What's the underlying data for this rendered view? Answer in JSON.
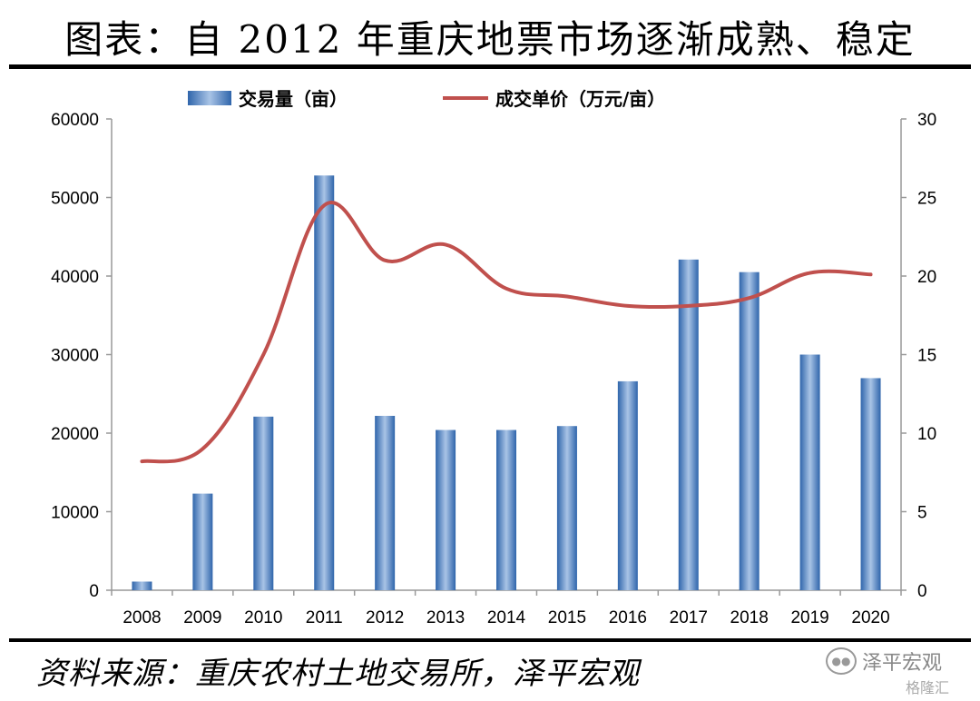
{
  "header": {
    "title": "图表：自 2012 年重庆地票市场逐渐成熟、稳定"
  },
  "footer": {
    "source": "资料来源：重庆农村土地交易所，泽平宏观",
    "watermark_brand": "泽平宏观",
    "watermark_site": "格隆汇"
  },
  "colors": {
    "bar": "#3d74b8",
    "bar_light": "#a9c4e6",
    "line": "#c0504d",
    "axis": "#999999"
  },
  "chart_data": {
    "type": "bar",
    "categories": [
      "2008",
      "2009",
      "2010",
      "2011",
      "2012",
      "2013",
      "2014",
      "2015",
      "2016",
      "2017",
      "2018",
      "2019",
      "2020"
    ],
    "series": [
      {
        "name": "交易量（亩）",
        "type": "bar",
        "axis": "left",
        "values": [
          1100,
          12300,
          22100,
          52800,
          22200,
          20400,
          20400,
          20900,
          26600,
          42100,
          40500,
          30000,
          27000
        ]
      },
      {
        "name": "成交单价（万元/亩）",
        "type": "line",
        "axis": "right",
        "values": [
          8.2,
          9.0,
          15.0,
          24.5,
          21.0,
          22.0,
          19.2,
          18.7,
          18.1,
          18.1,
          18.6,
          20.2,
          20.1
        ]
      }
    ],
    "y_left": {
      "min": 0,
      "max": 60000,
      "ticks": [
        "0",
        "10000",
        "20000",
        "30000",
        "40000",
        "50000",
        "60000"
      ]
    },
    "y_right": {
      "min": 0,
      "max": 30,
      "ticks": [
        "0",
        "5",
        "10",
        "15",
        "20",
        "25",
        "30"
      ]
    },
    "grid": false,
    "legend": "top"
  }
}
